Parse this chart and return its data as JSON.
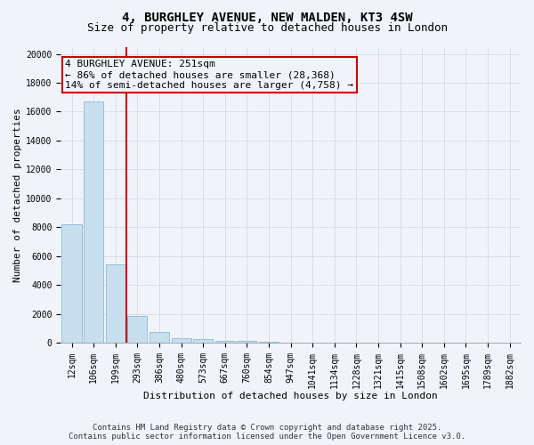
{
  "title1": "4, BURGHLEY AVENUE, NEW MALDEN, KT3 4SW",
  "title2": "Size of property relative to detached houses in London",
  "xlabel": "Distribution of detached houses by size in London",
  "ylabel": "Number of detached properties",
  "categories": [
    "12sqm",
    "106sqm",
    "199sqm",
    "293sqm",
    "386sqm",
    "480sqm",
    "573sqm",
    "667sqm",
    "760sqm",
    "854sqm",
    "947sqm",
    "1041sqm",
    "1134sqm",
    "1228sqm",
    "1321sqm",
    "1415sqm",
    "1508sqm",
    "1602sqm",
    "1695sqm",
    "1789sqm",
    "1882sqm"
  ],
  "values": [
    8200,
    16700,
    5400,
    1850,
    750,
    320,
    220,
    150,
    120,
    80,
    0,
    0,
    0,
    0,
    0,
    0,
    0,
    0,
    0,
    0,
    0
  ],
  "bar_color": "#c8dff0",
  "bar_edge_color": "#7ab0d4",
  "red_line_index": 2,
  "annotation_line1": "4 BURGHLEY AVENUE: 251sqm",
  "annotation_line2": "← 86% of detached houses are smaller (28,368)",
  "annotation_line3": "14% of semi-detached houses are larger (4,758) →",
  "annotation_box_color": "#cc0000",
  "ylim": [
    0,
    20500
  ],
  "yticks": [
    0,
    2000,
    4000,
    6000,
    8000,
    10000,
    12000,
    14000,
    16000,
    18000,
    20000
  ],
  "grid_color": "#d0dce8",
  "background_color": "#f0f4fa",
  "footer_line1": "Contains HM Land Registry data © Crown copyright and database right 2025.",
  "footer_line2": "Contains public sector information licensed under the Open Government Licence v3.0.",
  "title1_fontsize": 10,
  "title2_fontsize": 9,
  "tick_fontsize": 7,
  "ylabel_fontsize": 8,
  "xlabel_fontsize": 8,
  "annotation_fontsize": 8,
  "footer_fontsize": 6.5
}
